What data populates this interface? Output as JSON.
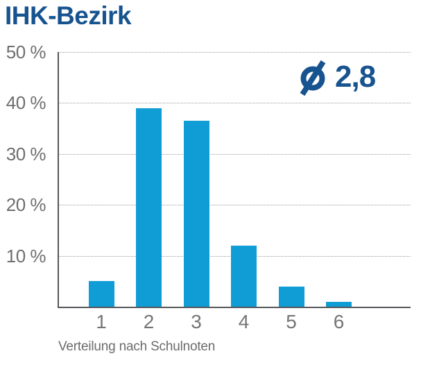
{
  "chart_data": {
    "type": "bar",
    "title": "IHK-Bezirk",
    "caption": "Verteilung nach Schulnoten",
    "categories": [
      "1",
      "2",
      "3",
      "4",
      "5",
      "6"
    ],
    "values": [
      5,
      39,
      36.5,
      12,
      4,
      1
    ],
    "unit": "%",
    "ylim": [
      0,
      50
    ],
    "yticks": [
      {
        "value": 10,
        "label": "10 %"
      },
      {
        "value": 20,
        "label": "20 %"
      },
      {
        "value": 30,
        "label": "30 %"
      },
      {
        "value": 40,
        "label": "40 %"
      },
      {
        "value": 50,
        "label": "50 %"
      }
    ],
    "grid": "horizontal-dotted",
    "legend": "none",
    "average": {
      "symbol_icon": "diameter-icon",
      "value_label": "2,8"
    },
    "colors": {
      "bar": "#109dd6",
      "title": "#17538f",
      "axis": "#55565a",
      "grid": "#9b9b9b",
      "tick_label": "#6e6e6e"
    }
  }
}
